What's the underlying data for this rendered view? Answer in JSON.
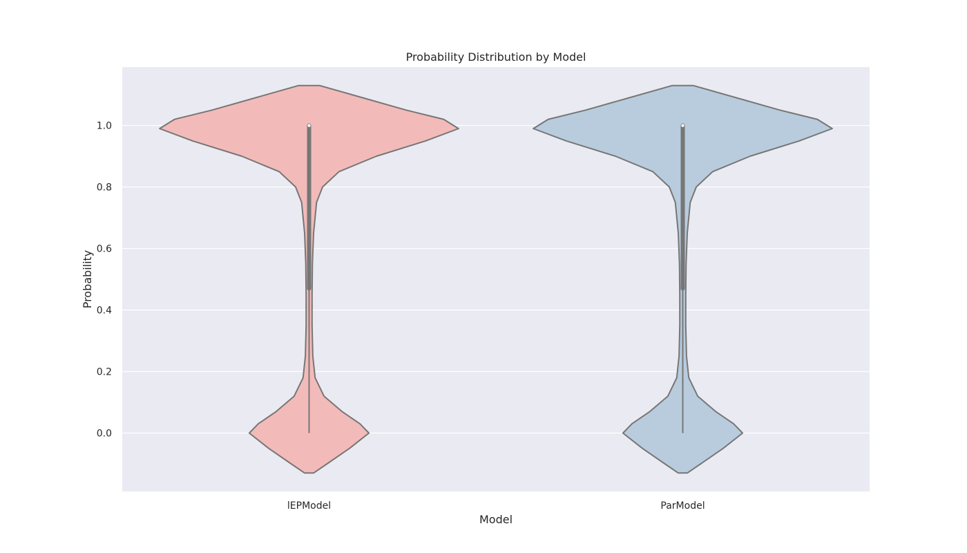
{
  "chart_data": {
    "type": "violin",
    "title": "Probability Distribution by Model",
    "xlabel": "Model",
    "ylabel": "Probability",
    "categories": [
      "lEPModel",
      "ParModel"
    ],
    "ylim": [
      -0.19,
      1.19
    ],
    "yticks": [
      0.0,
      0.2,
      0.4,
      0.6,
      0.8,
      1.0
    ],
    "ytick_labels": [
      "0.0",
      "0.2",
      "0.4",
      "0.6",
      "0.8",
      "1.0"
    ],
    "grid": true,
    "background": "#eaeaf2",
    "colors": [
      "#f2bbb9",
      "#b8ccdd"
    ],
    "edge_color": "#767676",
    "series": [
      {
        "category": "lEPModel",
        "min": 0.0,
        "q1": 0.47,
        "median": 1.0,
        "q3": 1.0,
        "max": 1.0,
        "density_profile": [
          [
            -0.13,
            0.03
          ],
          [
            -0.1,
            0.12
          ],
          [
            -0.05,
            0.27
          ],
          [
            0.0,
            0.4
          ],
          [
            0.03,
            0.34
          ],
          [
            0.07,
            0.22
          ],
          [
            0.12,
            0.1
          ],
          [
            0.18,
            0.04
          ],
          [
            0.25,
            0.025
          ],
          [
            0.35,
            0.02
          ],
          [
            0.45,
            0.02
          ],
          [
            0.55,
            0.022
          ],
          [
            0.65,
            0.03
          ],
          [
            0.75,
            0.05
          ],
          [
            0.8,
            0.09
          ],
          [
            0.85,
            0.2
          ],
          [
            0.9,
            0.45
          ],
          [
            0.95,
            0.78
          ],
          [
            0.99,
            1.0
          ],
          [
            1.02,
            0.9
          ],
          [
            1.05,
            0.65
          ],
          [
            1.09,
            0.36
          ],
          [
            1.13,
            0.07
          ]
        ]
      },
      {
        "category": "ParModel",
        "min": 0.0,
        "q1": 0.47,
        "median": 1.0,
        "q3": 1.0,
        "max": 1.0,
        "density_profile": [
          [
            -0.13,
            0.03
          ],
          [
            -0.1,
            0.12
          ],
          [
            -0.05,
            0.27
          ],
          [
            0.0,
            0.4
          ],
          [
            0.03,
            0.34
          ],
          [
            0.07,
            0.22
          ],
          [
            0.12,
            0.1
          ],
          [
            0.18,
            0.04
          ],
          [
            0.25,
            0.025
          ],
          [
            0.35,
            0.02
          ],
          [
            0.45,
            0.02
          ],
          [
            0.55,
            0.022
          ],
          [
            0.65,
            0.03
          ],
          [
            0.75,
            0.05
          ],
          [
            0.8,
            0.09
          ],
          [
            0.85,
            0.2
          ],
          [
            0.9,
            0.45
          ],
          [
            0.95,
            0.78
          ],
          [
            0.99,
            1.0
          ],
          [
            1.02,
            0.9
          ],
          [
            1.05,
            0.65
          ],
          [
            1.09,
            0.36
          ],
          [
            1.13,
            0.07
          ]
        ]
      }
    ]
  }
}
